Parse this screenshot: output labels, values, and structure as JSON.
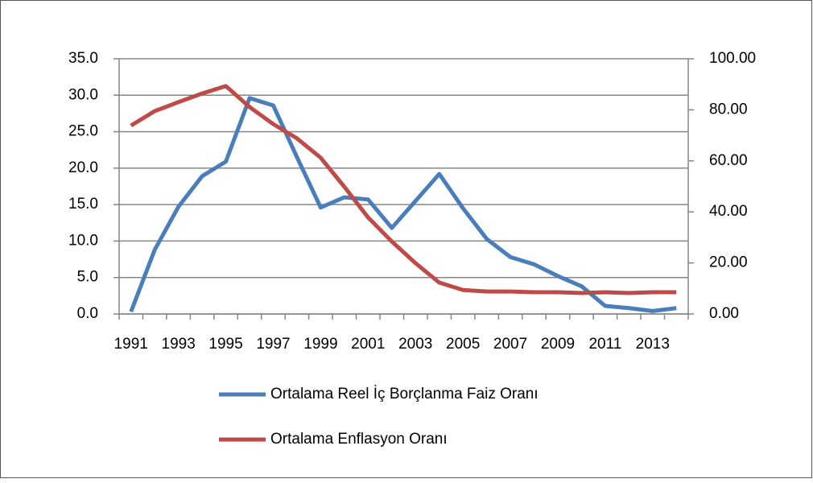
{
  "chart_data": {
    "type": "line",
    "categories": [
      "1991",
      null,
      "1993",
      null,
      "1995",
      null,
      "1997",
      null,
      "1999",
      null,
      "2001",
      null,
      "2003",
      null,
      "2005",
      null,
      "2007",
      null,
      "2009",
      null,
      "2011",
      null,
      "2013",
      null
    ],
    "series": [
      {
        "name": "Ortalama Reel İç Borçlanma Faiz Oranı",
        "color": "#4a7ebb",
        "values": [
          0.3,
          8.8,
          14.7,
          18.9,
          20.9,
          29.6,
          28.6,
          21.5,
          14.6,
          16.0,
          15.7,
          11.8,
          15.5,
          19.2,
          14.5,
          10.3,
          7.8,
          6.8,
          5.2,
          3.8,
          1.1,
          0.8,
          0.4,
          0.8
        ]
      },
      {
        "name": "Ortalama Enflasyon Oranı",
        "color": "#be4b48",
        "axis": "y2",
        "values": [
          73.8,
          79.5,
          83.0,
          86.4,
          89.3,
          81.1,
          74.4,
          68.8,
          61.2,
          49.8,
          37.8,
          28.4,
          19.9,
          12.3,
          9.4,
          8.8,
          8.8,
          8.5,
          8.5,
          8.2,
          8.5,
          8.2,
          8.5,
          8.5
        ]
      }
    ],
    "ylim": [
      0,
      35
    ],
    "yticks": [
      {
        "value": 0,
        "label": "0.0"
      },
      {
        "value": 5,
        "label": "5.0"
      },
      {
        "value": 10,
        "label": "10.0"
      },
      {
        "value": 15,
        "label": "15.0"
      },
      {
        "value": 20,
        "label": "20.0"
      },
      {
        "value": 25,
        "label": "25.0"
      },
      {
        "value": 30,
        "label": "30.0"
      },
      {
        "value": 35,
        "label": "35.0"
      }
    ],
    "y2lim": [
      0,
      100
    ],
    "y2ticks": [
      {
        "value": 0,
        "label": "0.00"
      },
      {
        "value": 20,
        "label": "20.00"
      },
      {
        "value": 40,
        "label": "40.00"
      },
      {
        "value": 60,
        "label": "60.00"
      },
      {
        "value": 80,
        "label": "80.00"
      },
      {
        "value": 100,
        "label": "100.00"
      }
    ],
    "grid": true,
    "legend": "bottom"
  }
}
